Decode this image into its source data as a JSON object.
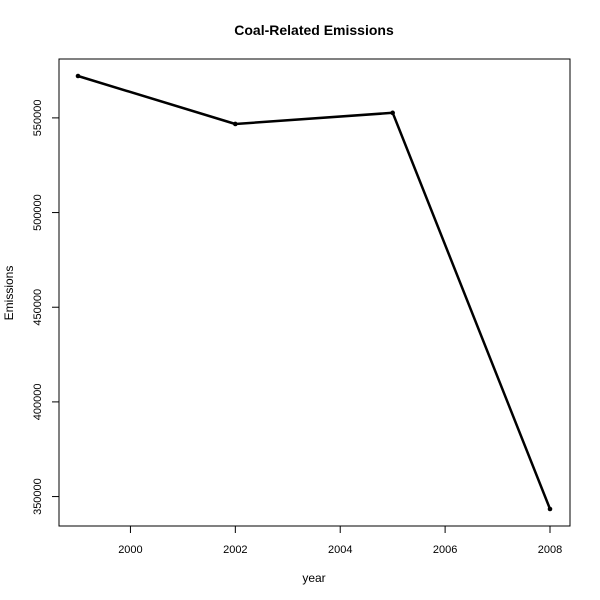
{
  "chart_data": {
    "type": "line",
    "title": "Coal-Related Emissions",
    "xlabel": "year",
    "ylabel": "Emissions",
    "x": [
      1999,
      2002,
      2005,
      2008
    ],
    "y": [
      572126,
      546789,
      552675,
      343432
    ],
    "xlim": [
      1999,
      2008
    ],
    "ylim": [
      343432,
      572126
    ],
    "xticks": [
      2000,
      2002,
      2004,
      2006,
      2008
    ],
    "yticks": [
      350000,
      400000,
      450000,
      500000,
      550000
    ],
    "xtick_labels": [
      "2000",
      "2002",
      "2004",
      "2006",
      "2008"
    ],
    "ytick_labels": [
      "350000",
      "400000",
      "450000",
      "500000",
      "550000"
    ],
    "grid": false,
    "line_color": "#000000",
    "marker": "point"
  }
}
